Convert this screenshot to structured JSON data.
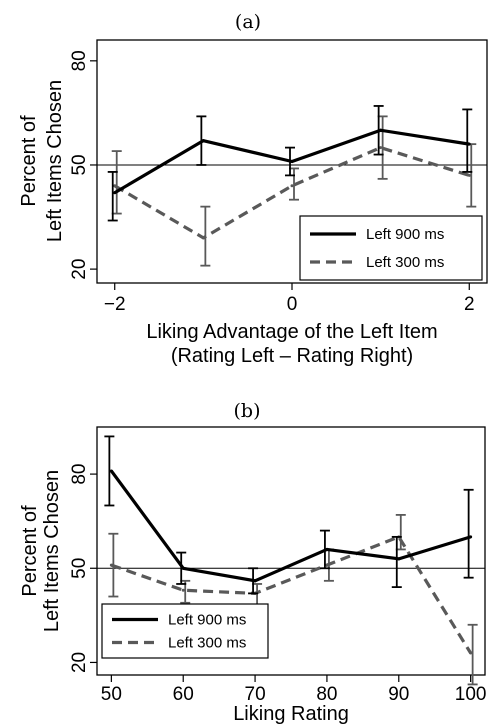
{
  "colors": {
    "series_900": "#000000",
    "series_300": "#595959",
    "frame": "#000000",
    "reference_line": "#000000"
  },
  "chart_data": [
    {
      "type": "line",
      "title": "(a)",
      "xlabel": "Liking Advantage of the Left Item",
      "xlabel2": "(Rating Left – Rating Right)",
      "ylabel": "Percent of",
      "ylabel2": "Left Items Chosen",
      "x": [
        -2,
        -1,
        0,
        1,
        2
      ],
      "xlim": [
        -2.2,
        2.2
      ],
      "ylim": [
        16,
        86
      ],
      "xticks": [
        -2,
        0,
        2
      ],
      "xtick_labels": [
        "−2",
        "0",
        "2"
      ],
      "yticks": [
        20,
        50,
        80
      ],
      "ytick_labels": [
        "20",
        "50",
        "80"
      ],
      "reference_y": 50,
      "legend_position": "bottom-right",
      "series": [
        {
          "name": "Left 900 ms",
          "style": "solid",
          "values": [
            42,
            57,
            51,
            60,
            56
          ],
          "err_low": [
            34,
            50,
            47,
            53,
            48
          ],
          "err_high": [
            48,
            64,
            55,
            67,
            66
          ]
        },
        {
          "name": "Left 300 ms",
          "style": "dashed",
          "values": [
            44,
            29,
            44,
            55,
            47
          ],
          "err_low": [
            36,
            21,
            40,
            46,
            38
          ],
          "err_high": [
            54,
            38,
            49,
            64,
            56
          ]
        }
      ]
    },
    {
      "type": "line",
      "title": "(b)",
      "xlabel": "Liking Rating",
      "ylabel": "Percent of",
      "ylabel2": "Left Items Chosen",
      "x": [
        50,
        60,
        70,
        80,
        90,
        100
      ],
      "xlim": [
        48,
        102
      ],
      "ylim": [
        16,
        95
      ],
      "xticks": [
        50,
        60,
        70,
        80,
        90,
        100
      ],
      "xtick_labels": [
        "50",
        "60",
        "70",
        "80",
        "90",
        "100"
      ],
      "yticks": [
        20,
        50,
        80
      ],
      "ytick_labels": [
        "20",
        "50",
        "80"
      ],
      "reference_y": 50,
      "legend_position": "bottom-left",
      "series": [
        {
          "name": "Left 900 ms",
          "style": "solid",
          "values": [
            81,
            50,
            46,
            56,
            53,
            60
          ],
          "err_low": [
            70,
            45,
            42,
            50,
            44,
            47
          ],
          "err_high": [
            92,
            55,
            50,
            62,
            60,
            75
          ]
        },
        {
          "name": "Left 300 ms",
          "style": "dashed",
          "values": [
            51,
            43,
            42,
            51,
            60,
            23
          ],
          "err_low": [
            41,
            39,
            38,
            46,
            56,
            13
          ],
          "err_high": [
            61,
            46,
            45,
            56,
            67,
            32
          ]
        }
      ]
    }
  ]
}
